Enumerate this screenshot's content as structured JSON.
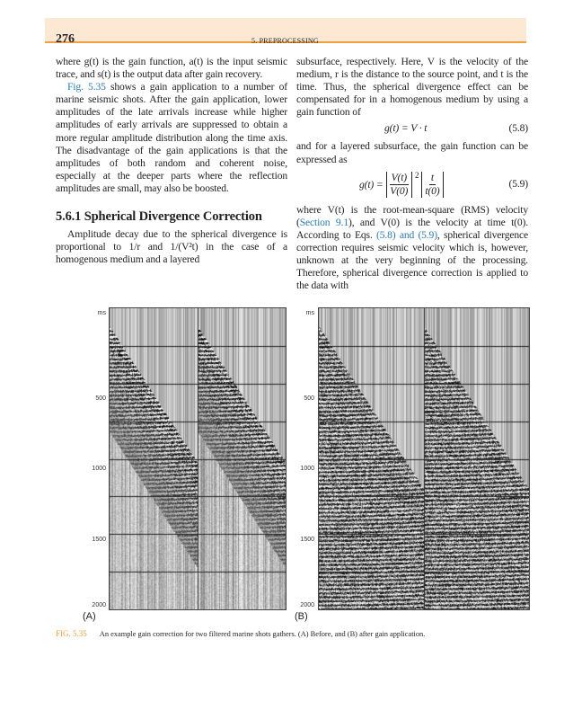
{
  "header": {
    "page_number": "276",
    "running_title": "5. PREPROCESSING",
    "accent_color": "#f0a040",
    "band_color": "#fde9d3"
  },
  "left_column": {
    "p1": "where g(t) is the gain function, a(t) is the input seismic trace, and s(t) is the output data after gain recovery.",
    "p2_link": "Fig. 5.35",
    "p2": " shows a gain application to a number of marine seismic shots. After the gain application, lower amplitudes of the late arrivals increase while higher amplitudes of early arrivals are suppressed to obtain a more regular amplitude distribution along the time axis. The disadvantage of the gain applications is that the amplitudes of both random and coherent noise, especially at the deeper parts where the reflection amplitudes are small, may also be boosted.",
    "heading": "5.6.1 Spherical Divergence Correction",
    "p3": "Amplitude decay due to the spherical divergence is proportional to 1/r and 1/(V²t) in the case of a homogenous medium and a layered"
  },
  "right_column": {
    "p1": "subsurface, respectively. Here, V is the velocity of the medium, r is the distance to the source point, and t is the time. Thus, the spherical divergence effect can be compensated for in a homogenous medium by using a gain function of",
    "eq1": {
      "body": "g(t) = V · t",
      "number": "(5.8)"
    },
    "p2": "and for a layered subsurface, the gain function can be expressed as",
    "eq2": {
      "lhs": "g(t) =",
      "num1": "V(t)",
      "den1": "V(0)",
      "exp": "2",
      "num2": "t",
      "den2": "t(0)",
      "number": "(5.9)"
    },
    "p3a": "where V(t) is the root-mean-square (RMS) velocity (",
    "p3_link1": "Section 9.1",
    "p3b": "), and V(0) is the velocity at time t(0). According to Eqs. ",
    "p3_link2": "(5.8) and (5.9)",
    "p3c": ", spherical divergence correction requires seismic velocity which is, however, unknown at the very beginning of the processing. Therefore, spherical divergence correction is applied to the data with"
  },
  "figure": {
    "panels": [
      {
        "label": "(A)",
        "axis_unit": "ms",
        "ticks": [
          "500",
          "1000",
          "1500",
          "2000"
        ]
      },
      {
        "label": "(B)",
        "axis_unit": "ms",
        "ticks": [
          "500",
          "1000",
          "1500",
          "2000"
        ]
      }
    ],
    "caption_label": "FIG. 5.35",
    "caption_text": "An example gain correction for two filtered marine shots gathers. (A) Before, and (B) after gain application."
  }
}
